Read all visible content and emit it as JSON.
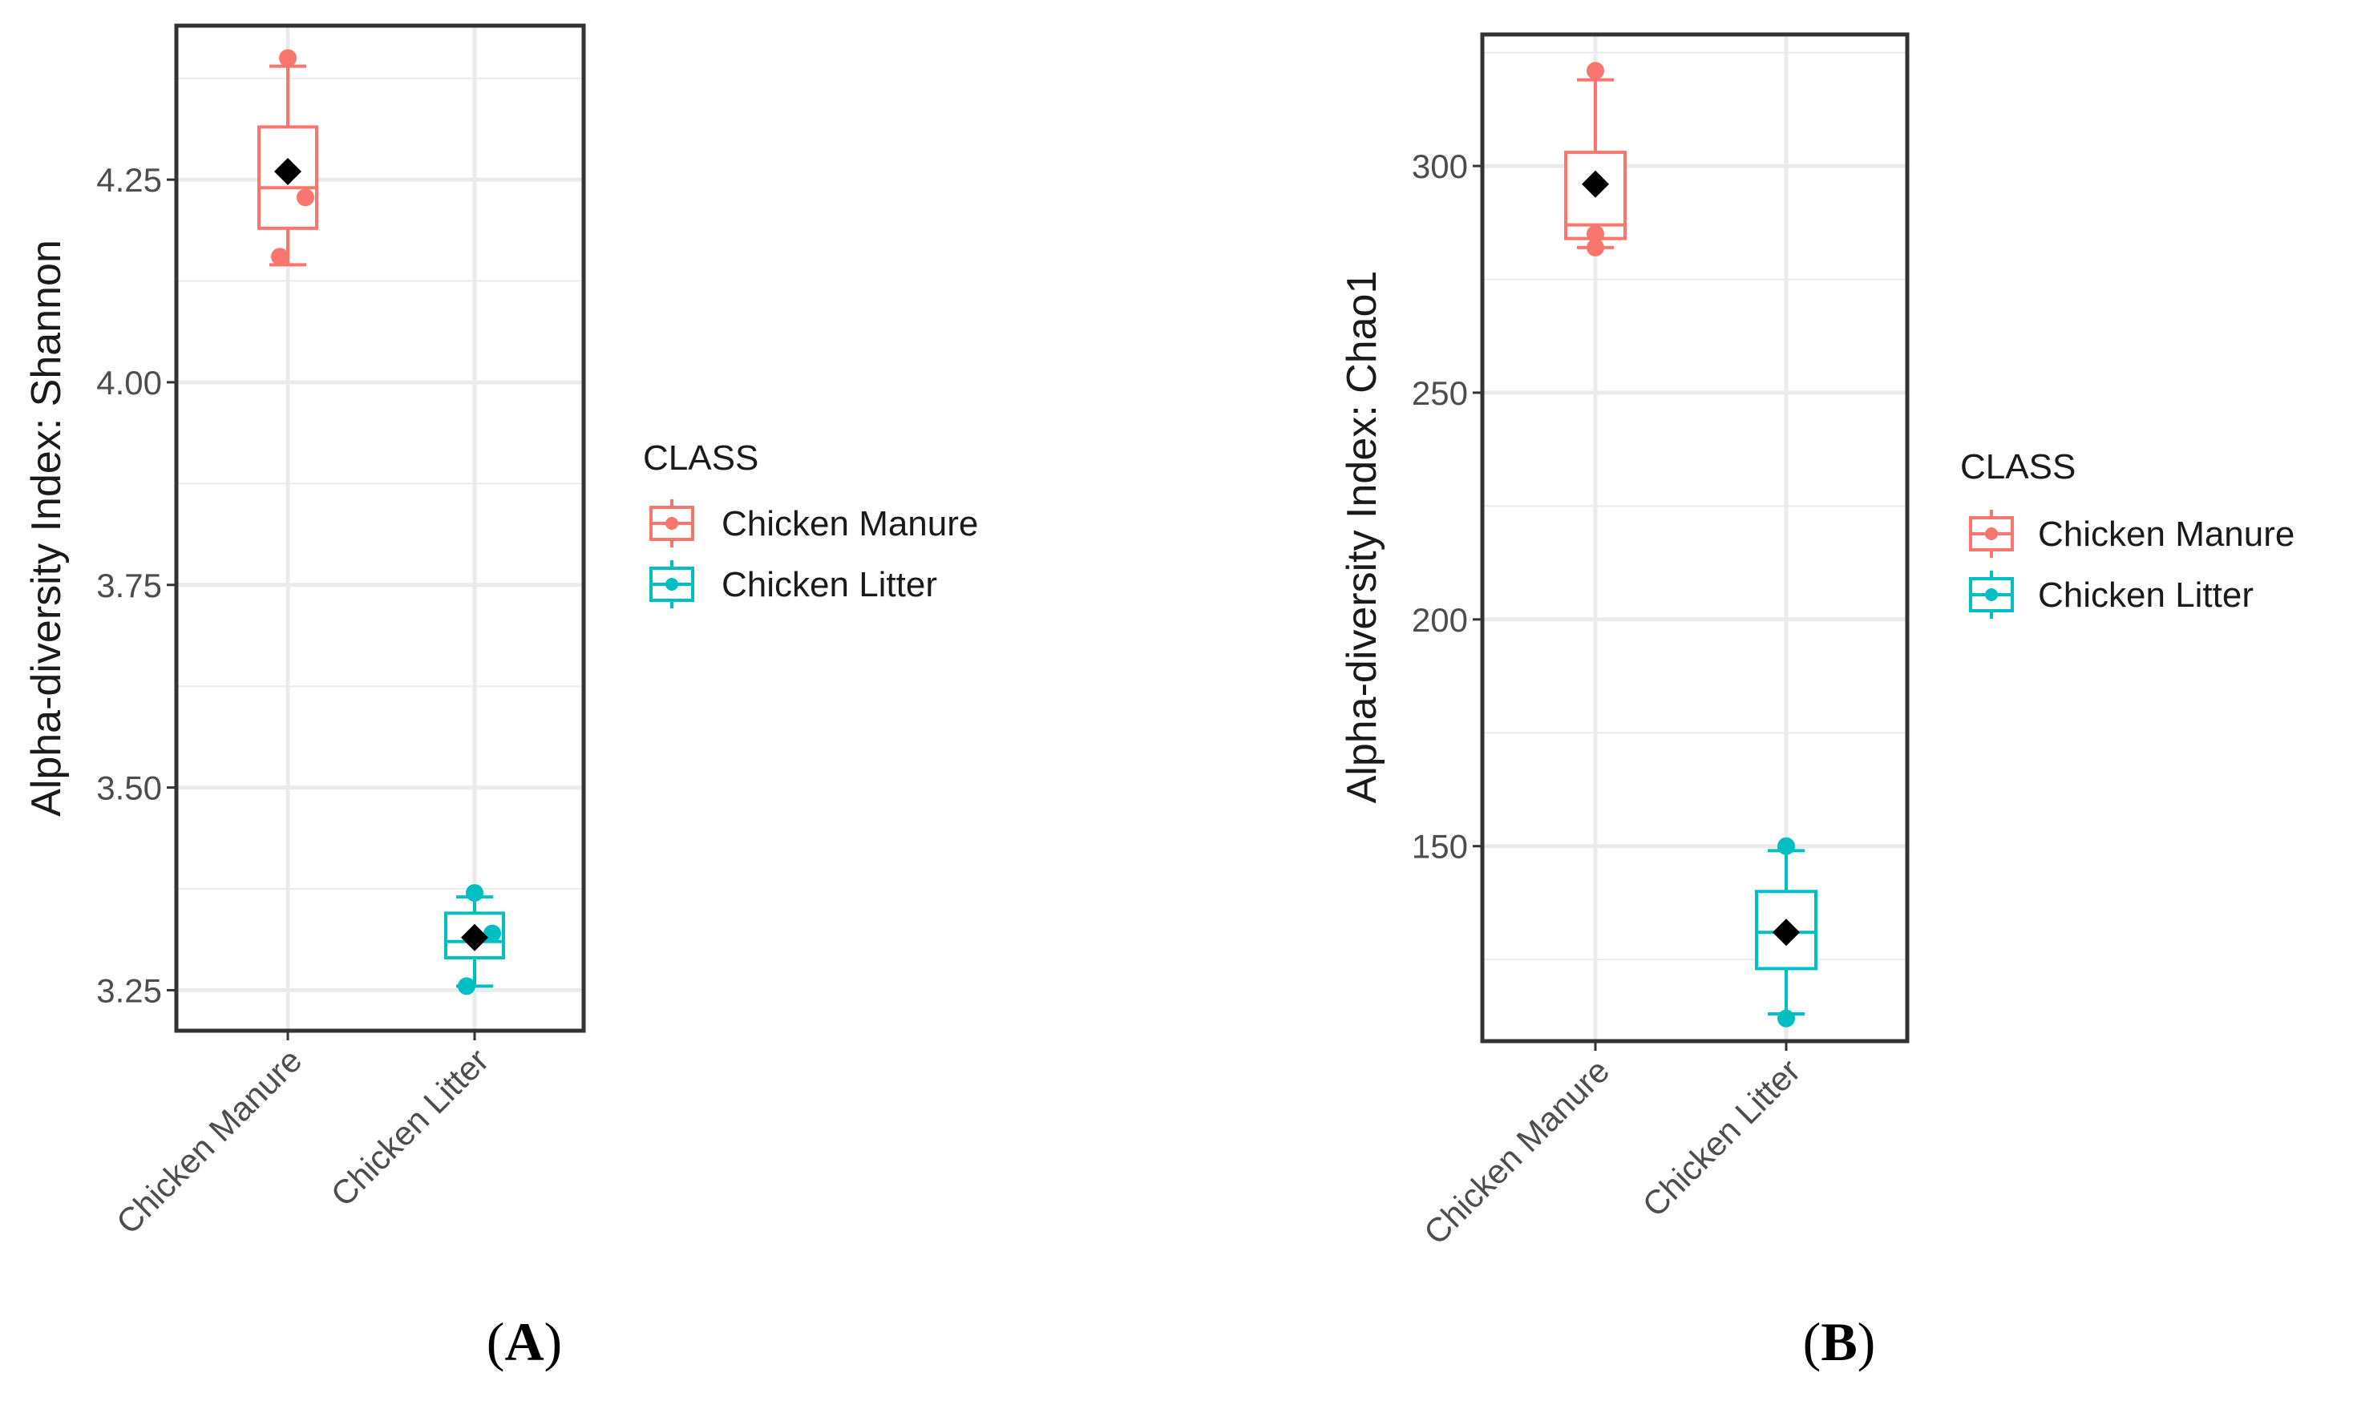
{
  "colors": {
    "manure": "#F8766D",
    "litter": "#00BFC4",
    "mean_marker": "#000000",
    "grid": "#ebebeb",
    "panel_border": "#333333"
  },
  "chart_data": [
    {
      "type": "box",
      "panel_label": "A",
      "ylabel": "Alpha-diversity Index: Shannon",
      "categories": [
        "Chicken Manure",
        "Chicken Litter"
      ],
      "ylim": [
        3.2,
        4.44
      ],
      "yticks": [
        3.25,
        3.5,
        3.75,
        4.0,
        4.25
      ],
      "ytick_labels": [
        "3.25",
        "3.50",
        "3.75",
        "4.00",
        "4.25"
      ],
      "y_minor": [
        3.375,
        3.625,
        3.875,
        4.125,
        4.375
      ],
      "grid": true,
      "legend": {
        "title": "CLASS",
        "placement": "right",
        "entries": [
          "Chicken Manure",
          "Chicken Litter"
        ]
      },
      "series": [
        {
          "name": "Chicken Manure",
          "color_key": "manure",
          "box": {
            "whisker_low": 4.145,
            "q1": 4.19,
            "median": 4.24,
            "q3": 4.315,
            "whisker_high": 4.39
          },
          "mean": 4.26,
          "points": [
            4.4,
            4.228,
            4.155
          ]
        },
        {
          "name": "Chicken Litter",
          "color_key": "litter",
          "box": {
            "whisker_low": 3.255,
            "q1": 3.29,
            "median": 3.31,
            "q3": 3.345,
            "whisker_high": 3.365
          },
          "mean": 3.315,
          "points": [
            3.37,
            3.32,
            3.255
          ]
        }
      ]
    },
    {
      "type": "box",
      "panel_label": "B",
      "ylabel": "Alpha-diversity Index: Chao1",
      "categories": [
        "Chicken Manure",
        "Chicken Litter"
      ],
      "ylim": [
        107,
        329
      ],
      "yticks": [
        150,
        200,
        250,
        300
      ],
      "ytick_labels": [
        "150",
        "200",
        "250",
        "300"
      ],
      "y_minor": [
        125,
        175,
        225,
        275,
        325
      ],
      "grid": true,
      "legend": {
        "title": "CLASS",
        "placement": "right",
        "entries": [
          "Chicken Manure",
          "Chicken Litter"
        ]
      },
      "series": [
        {
          "name": "Chicken Manure",
          "color_key": "manure",
          "box": {
            "whisker_low": 282,
            "q1": 284,
            "median": 287,
            "q3": 303,
            "whisker_high": 319
          },
          "mean": 296,
          "points": [
            321,
            285,
            282
          ]
        },
        {
          "name": "Chicken Litter",
          "color_key": "litter",
          "box": {
            "whisker_low": 113,
            "q1": 123,
            "median": 131,
            "q3": 140,
            "whisker_high": 149
          },
          "mean": 131,
          "points": [
            150,
            112,
            131
          ]
        }
      ]
    }
  ]
}
